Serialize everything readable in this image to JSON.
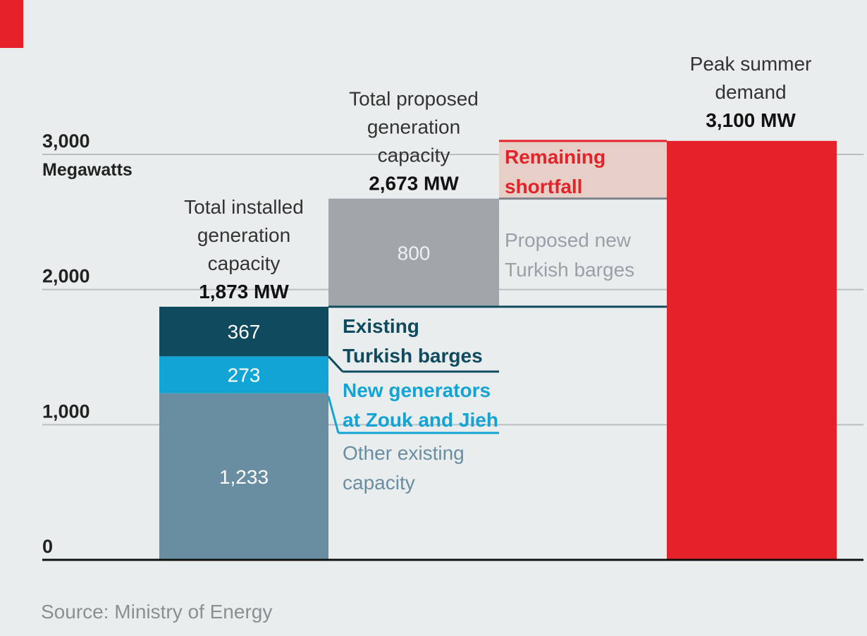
{
  "chart_data": {
    "type": "bar",
    "stacked": true,
    "ylabel": "Megawatts",
    "ylim": [
      0,
      3100
    ],
    "yticks": [
      0,
      1000,
      2000,
      3000
    ],
    "ytick_labels": [
      "0",
      "1,000",
      "2,000",
      "3,000"
    ],
    "grid": true,
    "bars": [
      {
        "id": "installed",
        "header_lines": [
          "Total installed",
          "generation",
          "capacity"
        ],
        "total_label": "1,873 MW",
        "segments": [
          {
            "name": "Other existing capacity",
            "value": 1233,
            "label": "1,233",
            "color": "#6a8ea1"
          },
          {
            "name": "New generators at Zouk and Jieh",
            "value": 273,
            "label": "273",
            "color": "#12a4d4"
          },
          {
            "name": "Existing Turkish barges",
            "value": 367,
            "label": "367",
            "color": "#0f4a5e"
          }
        ]
      },
      {
        "id": "proposed",
        "header_lines": [
          "Total proposed",
          "generation",
          "capacity"
        ],
        "total_label": "2,673 MW",
        "segments": [
          {
            "name": "Proposed new Turkish barges",
            "base": 1873,
            "value": 800,
            "label": "800",
            "color": "#a1a6ab"
          }
        ]
      },
      {
        "id": "shortfall",
        "segments": [
          {
            "name": "Remaining shortfall",
            "base": 2673,
            "value": 427,
            "color": "#e5cfc7"
          }
        ]
      },
      {
        "id": "demand",
        "header_lines": [
          "Peak summer",
          "demand"
        ],
        "total_label": "3,100 MW",
        "segments": [
          {
            "name": "Peak summer demand",
            "value": 3100,
            "color": "#e52129"
          }
        ]
      }
    ],
    "annotations": [
      {
        "lines": [
          "Existing",
          "Turkish barges"
        ],
        "color": "#0f4a5e"
      },
      {
        "lines": [
          "New generators",
          "at Zouk and Jieh"
        ],
        "color": "#12a4d4"
      },
      {
        "lines": [
          "Other existing",
          "capacity"
        ],
        "color": "#6a8ea1"
      },
      {
        "lines": [
          "Proposed new",
          "Turkish barges"
        ],
        "color": "#9aa0a5"
      },
      {
        "lines": [
          "Remaining",
          "shortfall"
        ],
        "color": "#e52129"
      }
    ],
    "source": "Source: Ministry of Energy",
    "accent_color": "#e52129"
  }
}
